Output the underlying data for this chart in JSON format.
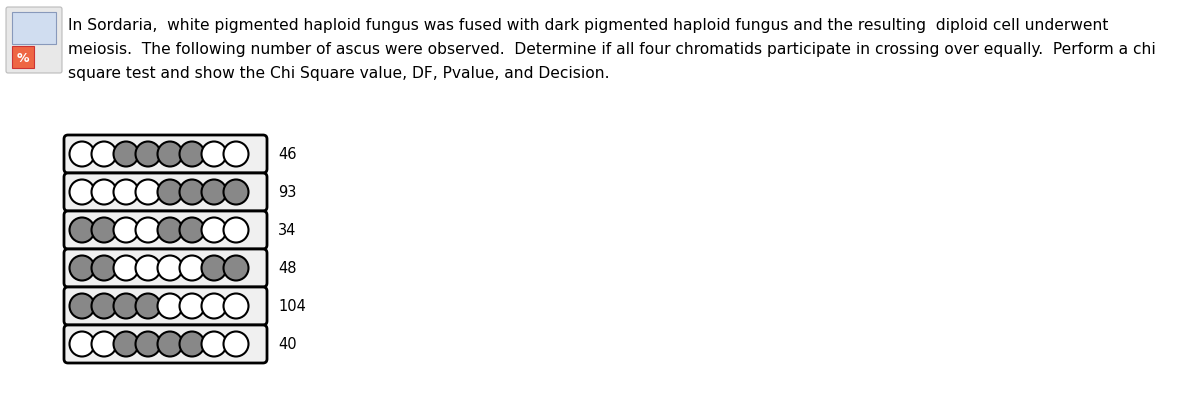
{
  "title_lines": [
    "In Sordaria,  white pigmented haploid fungus was fused with dark pigmented haploid fungus and the resulting  diploid cell underwent",
    "meiosis.  The following number of ascus were observed.  Determine if all four chromatids participate in crossing over equally.  Perform a chi",
    "square test and show the Chi Square value, DF, Pvalue, and Decision."
  ],
  "ascus_patterns": [
    {
      "spores": [
        "W",
        "W",
        "D",
        "D",
        "D",
        "D",
        "W",
        "W"
      ],
      "count": 46
    },
    {
      "spores": [
        "W",
        "W",
        "W",
        "W",
        "D",
        "D",
        "D",
        "D"
      ],
      "count": 93
    },
    {
      "spores": [
        "D",
        "D",
        "W",
        "W",
        "D",
        "D",
        "W",
        "W"
      ],
      "count": 34
    },
    {
      "spores": [
        "D",
        "D",
        "W",
        "W",
        "W",
        "W",
        "D",
        "D"
      ],
      "count": 48
    },
    {
      "spores": [
        "D",
        "D",
        "D",
        "D",
        "W",
        "W",
        "W",
        "W"
      ],
      "count": 104
    },
    {
      "spores": [
        "W",
        "W",
        "D",
        "D",
        "D",
        "D",
        "W",
        "W"
      ],
      "count": 40
    }
  ],
  "white_color": "#ffffff",
  "dark_color": "#888888",
  "spore_outline": "#000000",
  "box_color": "#000000",
  "bg_color": "#ffffff",
  "text_color": "#000000",
  "title_fontsize": 11.2,
  "count_fontsize": 10.5
}
